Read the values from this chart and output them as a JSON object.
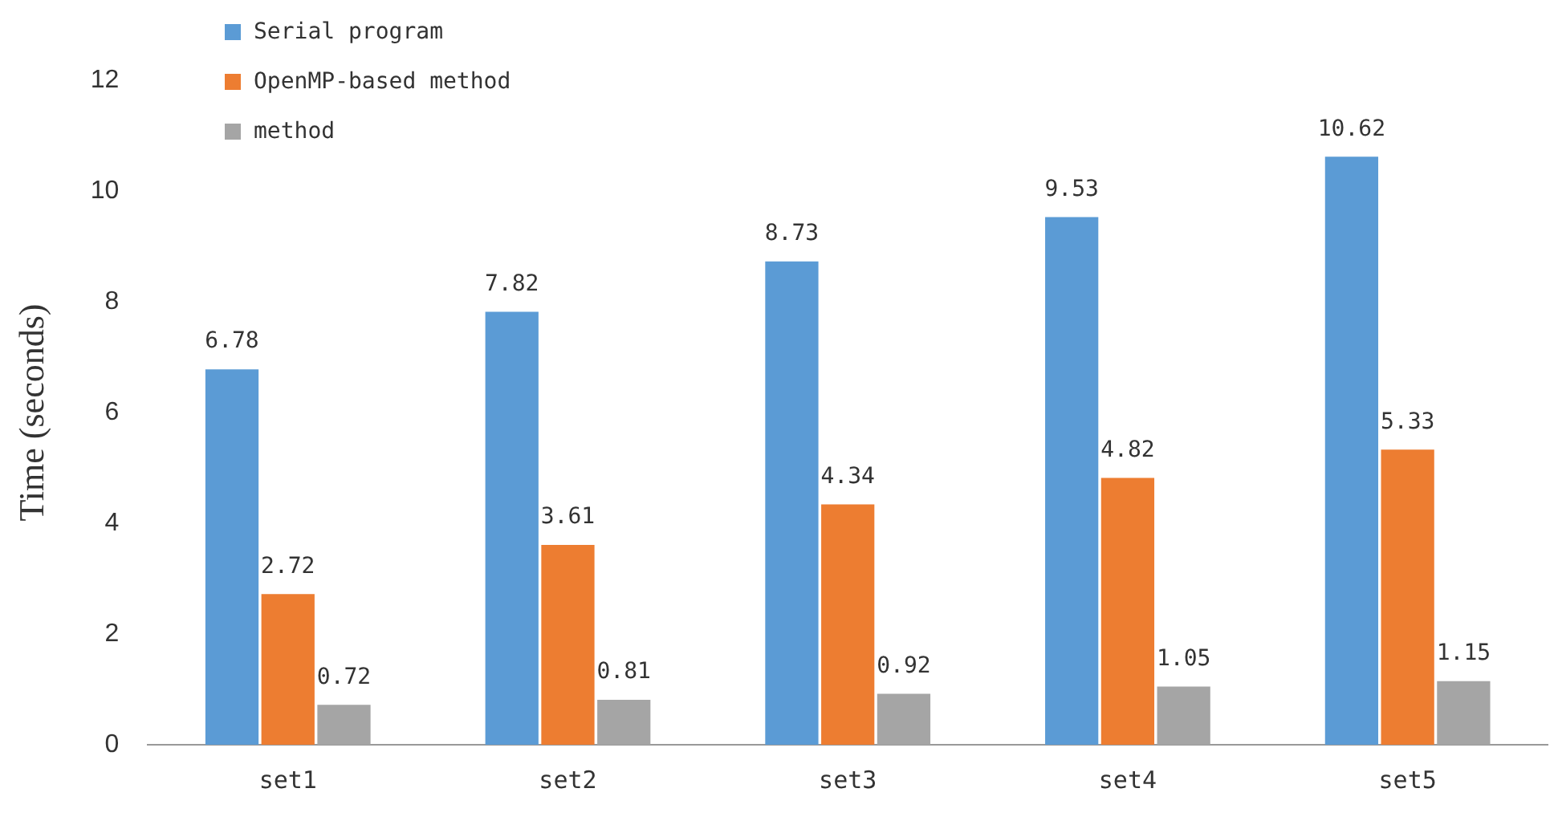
{
  "chart_data": {
    "type": "bar",
    "ylabel": "Time (seconds)",
    "categories": [
      "set1",
      "set2",
      "set3",
      "set4",
      "set5"
    ],
    "series": [
      {
        "name": "Serial program",
        "color": "#5b9bd5",
        "values": [
          6.78,
          7.82,
          8.73,
          9.53,
          10.62
        ]
      },
      {
        "name": "OpenMP-based method",
        "color": "#ed7d31",
        "values": [
          2.72,
          3.61,
          4.34,
          4.82,
          5.33
        ]
      },
      {
        "name": "method",
        "color": "#a5a5a5",
        "values": [
          0.72,
          0.81,
          0.92,
          1.05,
          1.15
        ]
      }
    ],
    "ylim": [
      0,
      12
    ],
    "yticks": [
      0,
      2,
      4,
      6,
      8,
      10,
      12
    ],
    "grid": false,
    "legend": "top left",
    "data_labels": true
  }
}
